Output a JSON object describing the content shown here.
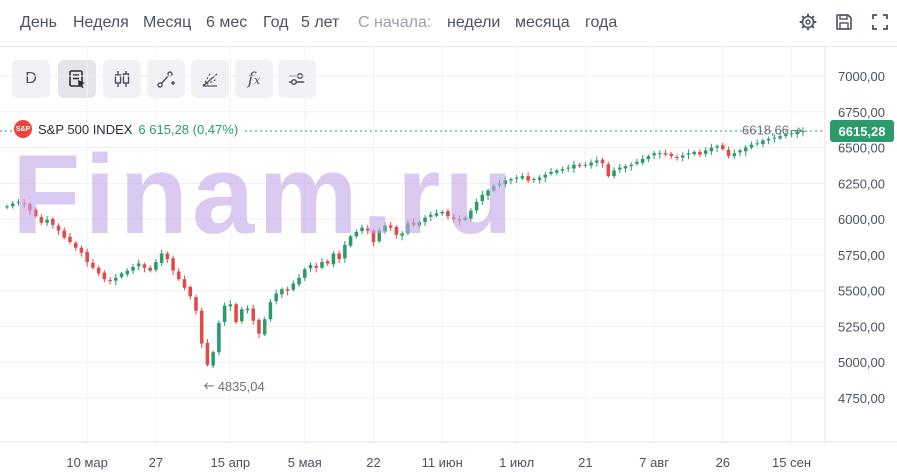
{
  "periods": [
    "День",
    "Неделя",
    "Месяц",
    "6 мес",
    "Год",
    "5 лет"
  ],
  "since_label": "С начала:",
  "since_periods": [
    "недели",
    "месяца",
    "года"
  ],
  "toolbar": {
    "interval_label": "D",
    "fx_label": "f"
  },
  "legend": {
    "logo_text": "S&P",
    "name": "S&P 500 INDEX",
    "value": "6 615,28 (0,47%)"
  },
  "watermark": "Finam.ru",
  "colors": {
    "up": "#2c9b6a",
    "down": "#e04a4a",
    "accent": "#2c9b6a",
    "logo": "#e8453c"
  },
  "chart_data": {
    "type": "candlestick",
    "ylim": [
      4600,
      7100
    ],
    "y_ticks": [
      {
        "value": 7000,
        "label": "7000,00"
      },
      {
        "value": 6750,
        "label": "6750,00"
      },
      {
        "value": 6500,
        "label": "6500,00"
      },
      {
        "value": 6250,
        "label": "6250,00"
      },
      {
        "value": 6000,
        "label": "6000,00"
      },
      {
        "value": 5750,
        "label": "5750,00"
      },
      {
        "value": 5500,
        "label": "5500,00"
      },
      {
        "value": 5250,
        "label": "5250,00"
      },
      {
        "value": 5000,
        "label": "5000,00"
      },
      {
        "value": 4750,
        "label": "4750,00"
      }
    ],
    "x_ticks": [
      {
        "index": 14,
        "label": "10 мар"
      },
      {
        "index": 26,
        "label": "27"
      },
      {
        "index": 39,
        "label": "15 апр"
      },
      {
        "index": 52,
        "label": "5 мая"
      },
      {
        "index": 64,
        "label": "22"
      },
      {
        "index": 76,
        "label": "11 июн"
      },
      {
        "index": 89,
        "label": "1 июл"
      },
      {
        "index": 101,
        "label": "21"
      },
      {
        "index": 113,
        "label": "7 авг"
      },
      {
        "index": 125,
        "label": "26"
      },
      {
        "index": 137,
        "label": "15 сен"
      }
    ],
    "last_price": {
      "value": 6615.28,
      "label": "6615,28"
    },
    "annotations": [
      {
        "label": "6618,66",
        "value": 6618.66,
        "index": 139
      },
      {
        "label": "4835,04",
        "value": 4835.04,
        "index": 34
      }
    ],
    "closes": [
      6090,
      6110,
      6118,
      6105,
      6060,
      6020,
      5975,
      5995,
      5960,
      5920,
      5870,
      5840,
      5800,
      5765,
      5700,
      5660,
      5620,
      5580,
      5570,
      5590,
      5620,
      5640,
      5665,
      5690,
      5660,
      5640,
      5700,
      5760,
      5720,
      5640,
      5580,
      5520,
      5460,
      5360,
      5130,
      4982,
      5070,
      5275,
      5396,
      5405,
      5280,
      5370,
      5375,
      5290,
      5200,
      5300,
      5420,
      5480,
      5510,
      5500,
      5550,
      5590,
      5650,
      5680,
      5660,
      5700,
      5690,
      5760,
      5720,
      5820,
      5880,
      5910,
      5940,
      5920,
      5840,
      5920,
      5955,
      5940,
      5890,
      5900,
      5970,
      5960,
      5980,
      6010,
      6030,
      6040,
      6050,
      6020,
      6000,
      5990,
      6010,
      6060,
      6120,
      6170,
      6200,
      6230,
      6250,
      6270,
      6280,
      6290,
      6300,
      6270,
      6280,
      6290,
      6310,
      6330,
      6340,
      6350,
      6360,
      6380,
      6370,
      6380,
      6395,
      6410,
      6390,
      6300,
      6340,
      6360,
      6370,
      6380,
      6400,
      6420,
      6440,
      6460,
      6460,
      6450,
      6440,
      6430,
      6445,
      6460,
      6470,
      6450,
      6480,
      6500,
      6510,
      6490,
      6440,
      6460,
      6480,
      6500,
      6520,
      6530,
      6550,
      6560,
      6570,
      6580,
      6590,
      6600,
      6610,
      6615.28
    ]
  }
}
